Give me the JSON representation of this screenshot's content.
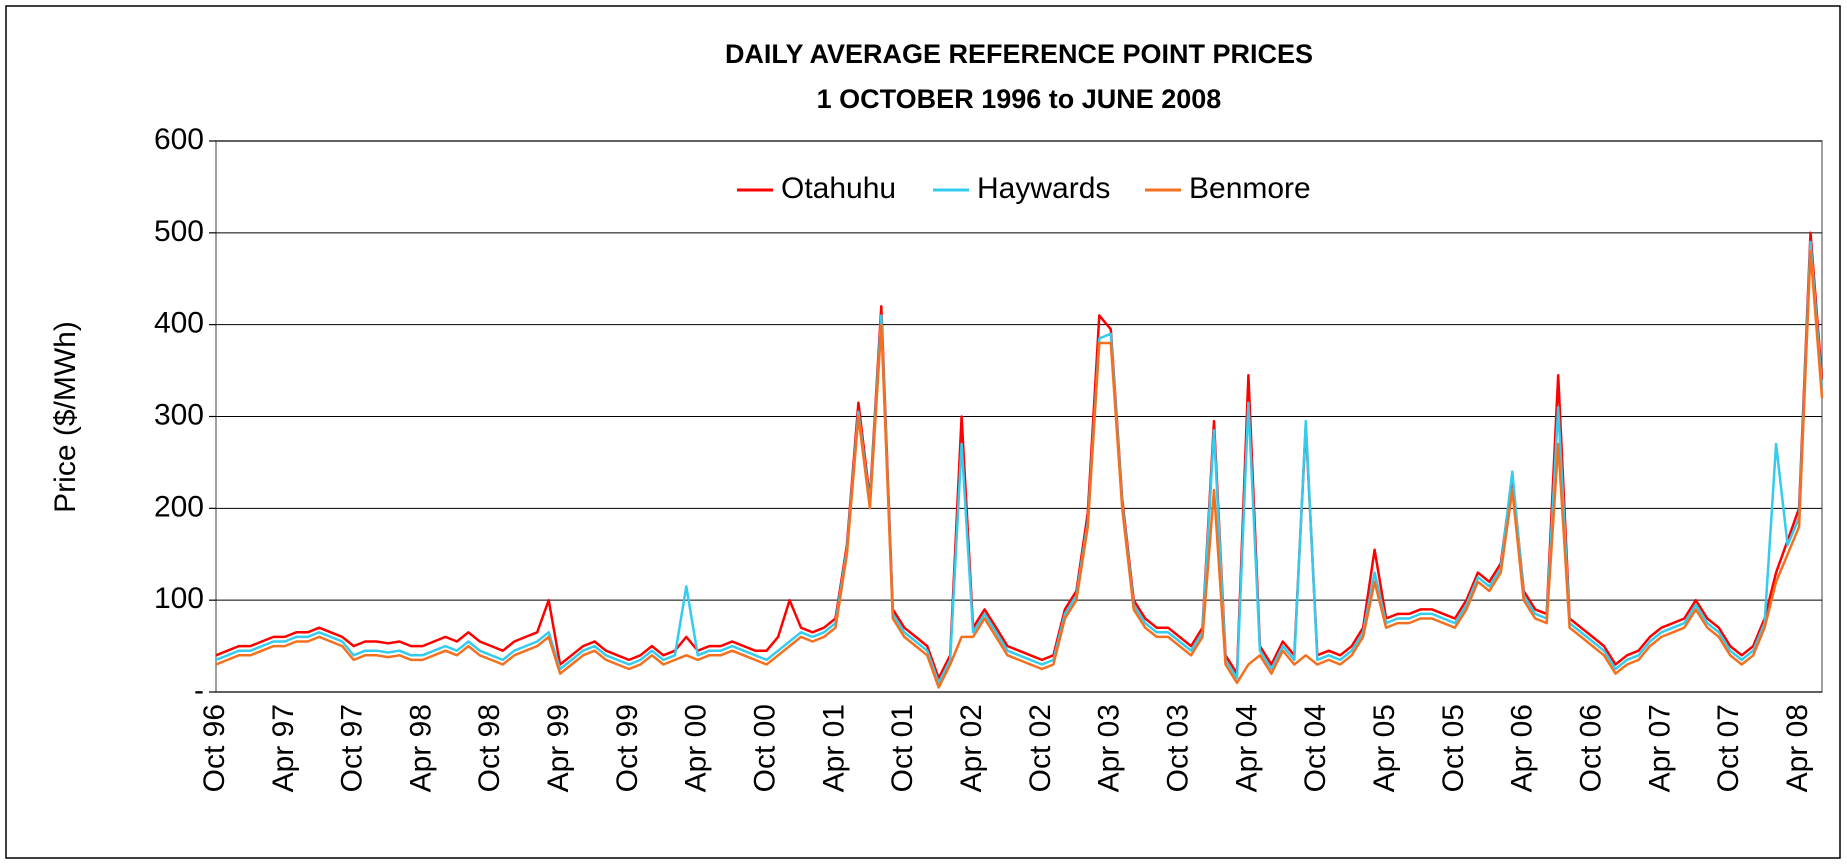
{
  "chart_data": {
    "type": "line",
    "title": "DAILY AVERAGE REFERENCE POINT PRICES",
    "subtitle": "1 OCTOBER 1996 to JUNE 2008",
    "y_label": "Price ($/MWh)",
    "categories": [
      "Oct 96",
      null,
      null,
      null,
      null,
      null,
      "Apr 97",
      null,
      null,
      null,
      null,
      null,
      "Oct 97",
      null,
      null,
      null,
      null,
      null,
      "Apr 98",
      null,
      null,
      null,
      null,
      null,
      "Oct 98",
      null,
      null,
      null,
      null,
      null,
      "Apr 99",
      null,
      null,
      null,
      null,
      null,
      "Oct 99",
      null,
      null,
      null,
      null,
      null,
      "Apr 00",
      null,
      null,
      null,
      null,
      null,
      "Oct 00",
      null,
      null,
      null,
      null,
      null,
      "Apr 01",
      null,
      null,
      null,
      null,
      null,
      "Oct 01",
      null,
      null,
      null,
      null,
      null,
      "Apr 02",
      null,
      null,
      null,
      null,
      null,
      "Oct 02",
      null,
      null,
      null,
      null,
      null,
      "Apr 03",
      null,
      null,
      null,
      null,
      null,
      "Oct 03",
      null,
      null,
      null,
      null,
      null,
      "Apr 04",
      null,
      null,
      null,
      null,
      null,
      "Oct 04",
      null,
      null,
      null,
      null,
      null,
      "Apr 05",
      null,
      null,
      null,
      null,
      null,
      "Oct 05",
      null,
      null,
      null,
      null,
      null,
      "Apr 06",
      null,
      null,
      null,
      null,
      null,
      "Oct 06",
      null,
      null,
      null,
      null,
      null,
      "Apr 07",
      null,
      null,
      null,
      null,
      null,
      "Oct 07",
      null,
      null,
      null,
      null,
      null,
      "Apr 08",
      null,
      null
    ],
    "series": [
      {
        "name": "Otahuhu",
        "color": "#ff0000",
        "values": [
          40,
          45,
          50,
          50,
          55,
          60,
          60,
          65,
          65,
          70,
          65,
          60,
          50,
          55,
          55,
          53,
          55,
          50,
          50,
          55,
          60,
          55,
          65,
          55,
          50,
          45,
          55,
          60,
          65,
          100,
          30,
          40,
          50,
          55,
          45,
          40,
          35,
          40,
          50,
          40,
          45,
          60,
          45,
          50,
          50,
          55,
          50,
          45,
          45,
          60,
          100,
          70,
          65,
          70,
          80,
          160,
          315,
          210,
          420,
          90,
          70,
          60,
          50,
          15,
          40,
          300,
          70,
          90,
          70,
          50,
          45,
          40,
          35,
          40,
          90,
          110,
          195,
          410,
          395,
          210,
          100,
          80,
          70,
          70,
          60,
          50,
          70,
          295,
          40,
          20,
          345,
          50,
          30,
          55,
          40,
          290,
          40,
          45,
          40,
          50,
          70,
          155,
          80,
          85,
          85,
          90,
          90,
          85,
          80,
          100,
          130,
          120,
          140,
          235,
          110,
          90,
          85,
          345,
          80,
          70,
          60,
          50,
          30,
          40,
          45,
          60,
          70,
          75,
          80,
          100,
          80,
          70,
          50,
          40,
          50,
          80,
          130,
          165,
          200,
          500,
          340
        ]
      },
      {
        "name": "Haywards",
        "color": "#33ccee",
        "values": [
          35,
          40,
          45,
          45,
          50,
          55,
          55,
          60,
          60,
          65,
          60,
          55,
          40,
          45,
          45,
          43,
          45,
          40,
          40,
          45,
          50,
          45,
          55,
          45,
          40,
          35,
          45,
          50,
          55,
          65,
          25,
          35,
          45,
          50,
          40,
          35,
          30,
          35,
          45,
          35,
          40,
          115,
          40,
          45,
          45,
          50,
          45,
          40,
          35,
          45,
          55,
          65,
          60,
          65,
          75,
          155,
          305,
          205,
          410,
          85,
          65,
          55,
          45,
          10,
          35,
          270,
          65,
          85,
          65,
          45,
          40,
          35,
          30,
          35,
          85,
          105,
          185,
          385,
          390,
          205,
          95,
          75,
          65,
          65,
          55,
          45,
          65,
          285,
          35,
          15,
          315,
          45,
          25,
          50,
          35,
          295,
          35,
          40,
          35,
          45,
          65,
          130,
          75,
          80,
          80,
          85,
          85,
          80,
          75,
          95,
          125,
          115,
          135,
          240,
          105,
          85,
          80,
          310,
          75,
          65,
          55,
          45,
          25,
          35,
          40,
          55,
          65,
          70,
          75,
          95,
          75,
          65,
          45,
          35,
          45,
          75,
          270,
          160,
          190,
          490,
          330
        ]
      },
      {
        "name": "Benmore",
        "color": "#f5701e",
        "values": [
          30,
          35,
          40,
          40,
          45,
          50,
          50,
          55,
          55,
          60,
          55,
          50,
          35,
          40,
          40,
          38,
          40,
          35,
          35,
          40,
          45,
          40,
          50,
          40,
          35,
          30,
          40,
          45,
          50,
          60,
          20,
          30,
          40,
          45,
          35,
          30,
          25,
          30,
          40,
          30,
          35,
          40,
          35,
          40,
          40,
          45,
          40,
          35,
          30,
          40,
          50,
          60,
          55,
          60,
          70,
          150,
          300,
          200,
          400,
          80,
          60,
          50,
          40,
          5,
          30,
          60,
          60,
          80,
          60,
          40,
          35,
          30,
          25,
          30,
          80,
          100,
          180,
          380,
          380,
          200,
          90,
          70,
          60,
          60,
          50,
          40,
          60,
          220,
          30,
          10,
          30,
          40,
          20,
          45,
          30,
          40,
          30,
          35,
          30,
          40,
          60,
          120,
          70,
          75,
          75,
          80,
          80,
          75,
          70,
          90,
          120,
          110,
          130,
          220,
          100,
          80,
          75,
          270,
          70,
          60,
          50,
          40,
          20,
          30,
          35,
          50,
          60,
          65,
          70,
          90,
          70,
          60,
          40,
          30,
          40,
          70,
          120,
          150,
          180,
          480,
          320
        ]
      }
    ],
    "ylim": [
      0,
      600
    ],
    "yticks": [
      {
        "value": 0,
        "label": "-"
      },
      100,
      200,
      300,
      400,
      500,
      600
    ],
    "grid": true,
    "legend": "top"
  }
}
